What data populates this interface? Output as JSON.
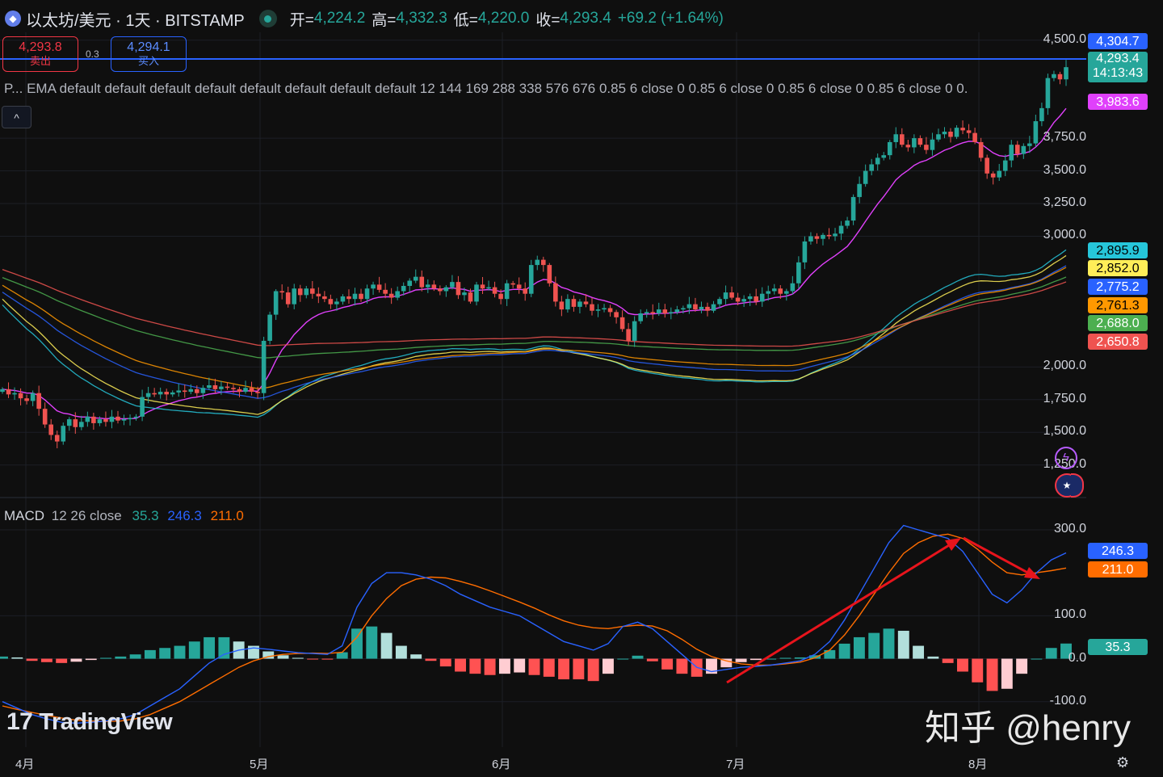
{
  "header": {
    "symbol": "以太坊/美元 · 1天 · BITSTAMP",
    "open_label": "开=",
    "open": "4,224.2",
    "high_label": "高=",
    "high": "4,332.3",
    "low_label": "低=",
    "low": "4,220.0",
    "close_label": "收=",
    "close": "4,293.4",
    "change": "+69.2 (+1.64%)"
  },
  "trade": {
    "sell_price": "4,293.8",
    "sell_label": "卖出",
    "spread": "0.3",
    "buy_price": "4,294.1",
    "buy_label": "买入"
  },
  "indicator_legend": {
    "prefix": "P...",
    "text": "EMA default default default default default default default default 12 144 169 288 338 576 676 0.85 6 close 0 0.85 6 close 0 0.85 6 close 0 0.85 6 close 0 0."
  },
  "collapse_glyph": "^",
  "macd_legend": {
    "name": "MACD",
    "params": "12 26 close",
    "hist": "35.3",
    "macd": "246.3",
    "signal": "211.0",
    "hist_color": "#26a69a",
    "macd_color": "#2962ff",
    "signal_color": "#ff6d00"
  },
  "price_tags": [
    {
      "text": "4,304.7",
      "bg": "#2962ff",
      "fg": "#ffffff"
    },
    {
      "text": "4,293.4",
      "text2": "14:13:43",
      "bg": "#26a69a",
      "fg": "#ffffff"
    },
    {
      "text": "3,983.6",
      "bg": "#e040fb",
      "fg": "#ffffff"
    },
    {
      "text": "2,895.9",
      "bg": "#26c6da",
      "fg": "#000000"
    },
    {
      "text": "2,852.0",
      "bg": "#ffee58",
      "fg": "#000000"
    },
    {
      "text": "2,775.2",
      "bg": "#2962ff",
      "fg": "#ffffff"
    },
    {
      "text": "2,761.3",
      "bg": "#ff9800",
      "fg": "#000000"
    },
    {
      "text": "2,688.0",
      "bg": "#4caf50",
      "fg": "#ffffff"
    },
    {
      "text": "2,650.8",
      "bg": "#ef5350",
      "fg": "#ffffff"
    }
  ],
  "macd_tags": [
    {
      "text": "246.3",
      "bg": "#2962ff",
      "fg": "#ffffff"
    },
    {
      "text": "211.0",
      "bg": "#ff6d00",
      "fg": "#ffffff"
    },
    {
      "text": "35.3",
      "bg": "#26a69a",
      "fg": "#ffffff"
    }
  ],
  "x_labels": [
    "4月",
    "5月",
    "6月",
    "7月",
    "8月"
  ],
  "watermark": "知乎 @henry",
  "brand": "TradingView",
  "brand_mark": "17",
  "icons": {
    "alert": "bolt-icon",
    "flag": "us-flag-icon",
    "settings": "gear-icon"
  },
  "chart_data": [
    {
      "type": "candlestick",
      "title": "以太坊/美元 · 1天 · BITSTAMP",
      "x": [
        "4月",
        "5月",
        "6月",
        "7月",
        "8月"
      ],
      "y_ticks": [
        "4,500.0",
        "3,750.0",
        "3,500.0",
        "3,250.0",
        "3,000.0",
        "2,000.0",
        "1,750.0",
        "1,500.0",
        "1,250.0"
      ],
      "ylim": [
        1100,
        4560
      ],
      "ohlc_last": {
        "open": 4224.2,
        "high": 4332.3,
        "low": 4220.0,
        "close": 4293.4
      },
      "close_path": [
        1830,
        1790,
        1800,
        1760,
        1740,
        1800,
        1680,
        1560,
        1480,
        1430,
        1550,
        1600,
        1540,
        1580,
        1620,
        1570,
        1600,
        1580,
        1620,
        1590,
        1600,
        1610,
        1620,
        1770,
        1800,
        1790,
        1810,
        1790,
        1805,
        1820,
        1810,
        1830,
        1800,
        1840,
        1860,
        1830,
        1850,
        1840,
        1830,
        1810,
        1840,
        1810,
        1800,
        2200,
        2400,
        2580,
        2570,
        2480,
        2600,
        2550,
        2600,
        2560,
        2540,
        2520,
        2480,
        2500,
        2540,
        2520,
        2560,
        2520,
        2600,
        2630,
        2590,
        2560,
        2530,
        2580,
        2620,
        2660,
        2690,
        2610,
        2630,
        2600,
        2580,
        2610,
        2650,
        2550,
        2570,
        2500,
        2630,
        2600,
        2610,
        2560,
        2520,
        2640,
        2630,
        2600,
        2560,
        2780,
        2820,
        2780,
        2640,
        2500,
        2440,
        2520,
        2460,
        2500,
        2480,
        2430,
        2440,
        2450,
        2420,
        2380,
        2290,
        2200,
        2350,
        2410,
        2420,
        2410,
        2440,
        2410,
        2420,
        2440,
        2450,
        2480,
        2440,
        2460,
        2430,
        2480,
        2520,
        2570,
        2530,
        2500,
        2520,
        2540,
        2500,
        2560,
        2580,
        2600,
        2560,
        2580,
        2640,
        2800,
        2960,
        3000,
        2980,
        3010,
        3000,
        3020,
        3080,
        3120,
        3300,
        3400,
        3500,
        3550,
        3600,
        3620,
        3720,
        3780,
        3700,
        3680,
        3750,
        3700,
        3660,
        3740,
        3780,
        3800,
        3760,
        3830,
        3810,
        3790,
        3720,
        3600,
        3480,
        3450,
        3500,
        3580,
        3700,
        3630,
        3690,
        3710,
        3880,
        3980,
        4210,
        4240,
        4200,
        4293.4
      ],
      "series": [
        {
          "name": "EMA 12",
          "color": "#e040fb",
          "last": 3983.6
        },
        {
          "name": "EMA 144",
          "color": "#26c6da",
          "last": 2895.9
        },
        {
          "name": "EMA 169",
          "color": "#ffee58",
          "last": 2852.0
        },
        {
          "name": "EMA 288",
          "color": "#2962ff",
          "last": 2775.2
        },
        {
          "name": "EMA 338",
          "color": "#ff9800",
          "last": 2761.3
        },
        {
          "name": "EMA 576",
          "color": "#4caf50",
          "last": 2688.0
        },
        {
          "name": "EMA 676",
          "color": "#ef5350",
          "last": 2650.8
        }
      ]
    },
    {
      "type": "line",
      "title": "MACD 12 26 close",
      "y_ticks": [
        "300.0",
        "100.0",
        "0.0",
        "-100.0"
      ],
      "ylim": [
        -140,
        330
      ],
      "macd": [
        -100,
        -115,
        -130,
        -140,
        -148,
        -150,
        -148,
        -145,
        -140,
        -130,
        -110,
        -90,
        -70,
        -40,
        -10,
        10,
        20,
        25,
        22,
        18,
        14,
        12,
        10,
        30,
        120,
        175,
        200,
        200,
        195,
        185,
        170,
        150,
        135,
        120,
        110,
        100,
        80,
        60,
        40,
        30,
        20,
        35,
        75,
        85,
        70,
        40,
        10,
        -20,
        -30,
        -25,
        -20,
        -18,
        -15,
        -10,
        -5,
        10,
        40,
        90,
        150,
        210,
        270,
        310,
        300,
        290,
        280,
        250,
        200,
        150,
        130,
        160,
        200,
        230,
        246.3
      ],
      "signal": [
        -110,
        -118,
        -125,
        -132,
        -138,
        -143,
        -145,
        -146,
        -145,
        -140,
        -130,
        -115,
        -100,
        -80,
        -60,
        -40,
        -20,
        -5,
        5,
        10,
        12,
        13,
        12,
        15,
        50,
        100,
        140,
        170,
        185,
        190,
        188,
        180,
        170,
        158,
        145,
        132,
        118,
        102,
        88,
        78,
        72,
        70,
        75,
        78,
        76,
        65,
        45,
        22,
        5,
        -5,
        -12,
        -15,
        -15,
        -12,
        -8,
        2,
        20,
        55,
        100,
        150,
        200,
        245,
        270,
        285,
        290,
        280,
        255,
        225,
        200,
        195,
        200,
        205,
        211.0
      ],
      "histogram": [
        5,
        3,
        -5,
        -8,
        -10,
        -7,
        -3,
        2,
        5,
        10,
        20,
        25,
        30,
        40,
        50,
        50,
        40,
        30,
        17,
        8,
        2,
        -1,
        -2,
        15,
        70,
        75,
        60,
        30,
        10,
        -5,
        -18,
        -30,
        -35,
        -38,
        -35,
        -32,
        -38,
        -42,
        -48,
        -48,
        -52,
        -35,
        0,
        7,
        -6,
        -25,
        -35,
        -42,
        -35,
        -20,
        -8,
        -3,
        0,
        2,
        3,
        8,
        20,
        35,
        50,
        60,
        70,
        65,
        30,
        5,
        -10,
        -30,
        -55,
        -75,
        -70,
        -35,
        0,
        25,
        35.3
      ]
    }
  ]
}
